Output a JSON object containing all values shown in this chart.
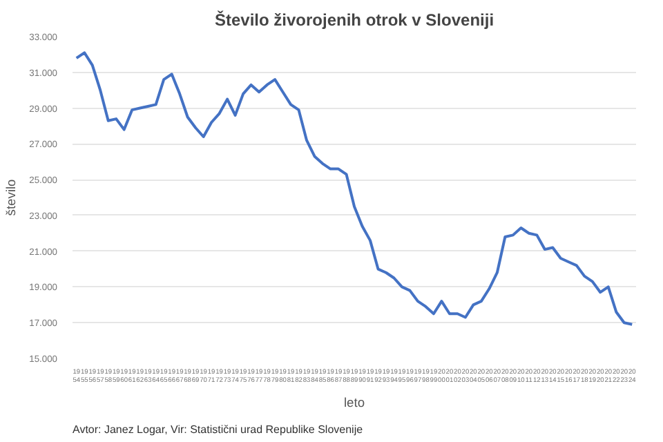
{
  "chart_data": {
    "type": "line",
    "title": "Število živorojenih otrok v Sloveniji",
    "xlabel": "leto",
    "ylabel": "število",
    "annotations": [
      "Avtor: Janez Logar, Vir: Statistični urad Republike Slovenije"
    ],
    "categories": [
      "1954",
      "1955",
      "1956",
      "1957",
      "1958",
      "1959",
      "1960",
      "1961",
      "1962",
      "1963",
      "1964",
      "1965",
      "1966",
      "1967",
      "1968",
      "1969",
      "1970",
      "1971",
      "1972",
      "1973",
      "1974",
      "1975",
      "1976",
      "1977",
      "1978",
      "1979",
      "1980",
      "1981",
      "1982",
      "1983",
      "1984",
      "1985",
      "1986",
      "1987",
      "1988",
      "1989",
      "1990",
      "1991",
      "1992",
      "1993",
      "1994",
      "1995",
      "1996",
      "1997",
      "1998",
      "1999",
      "2000",
      "2001",
      "2002",
      "2003",
      "2004",
      "2005",
      "2006",
      "2007",
      "2008",
      "2009",
      "2010",
      "2011",
      "2012",
      "2013",
      "2014",
      "2015",
      "2016",
      "2017",
      "2018",
      "2019",
      "2020",
      "2021",
      "2022",
      "2023",
      "2024"
    ],
    "series": [
      {
        "color": "#4472c4",
        "values": [
          31800,
          32100,
          31400,
          30000,
          28300,
          28400,
          27800,
          28900,
          29000,
          29100,
          29200,
          30600,
          30900,
          29800,
          28500,
          27900,
          27400,
          28200,
          28700,
          29500,
          28600,
          29800,
          30300,
          29900,
          30300,
          30600,
          29900,
          29200,
          28900,
          27200,
          26300,
          25900,
          25600,
          25600,
          25300,
          23500,
          22400,
          21600,
          20000,
          19800,
          19500,
          19000,
          18800,
          18200,
          17900,
          17500,
          18200,
          17500,
          17500,
          17300,
          18000,
          18200,
          18900,
          19800,
          21800,
          21900,
          22300,
          22000,
          21900,
          21100,
          21200,
          20600,
          20400,
          20200,
          19600,
          19300,
          18700,
          19000,
          17600,
          17000,
          16900
        ]
      }
    ],
    "ylim": [
      15000,
      33000
    ],
    "yticks": [
      {
        "value": 15000,
        "label": "15.000"
      },
      {
        "value": 17000,
        "label": "17.000"
      },
      {
        "value": 19000,
        "label": "19.000"
      },
      {
        "value": 21000,
        "label": "21.000"
      },
      {
        "value": 23000,
        "label": "23.000"
      },
      {
        "value": 25000,
        "label": "25.000"
      },
      {
        "value": 27000,
        "label": "27.000"
      },
      {
        "value": 29000,
        "label": "29.000"
      },
      {
        "value": 31000,
        "label": "31.000"
      },
      {
        "value": 33000,
        "label": "33.000"
      }
    ],
    "grid": "y",
    "marker": "none",
    "line_style": "solid"
  }
}
